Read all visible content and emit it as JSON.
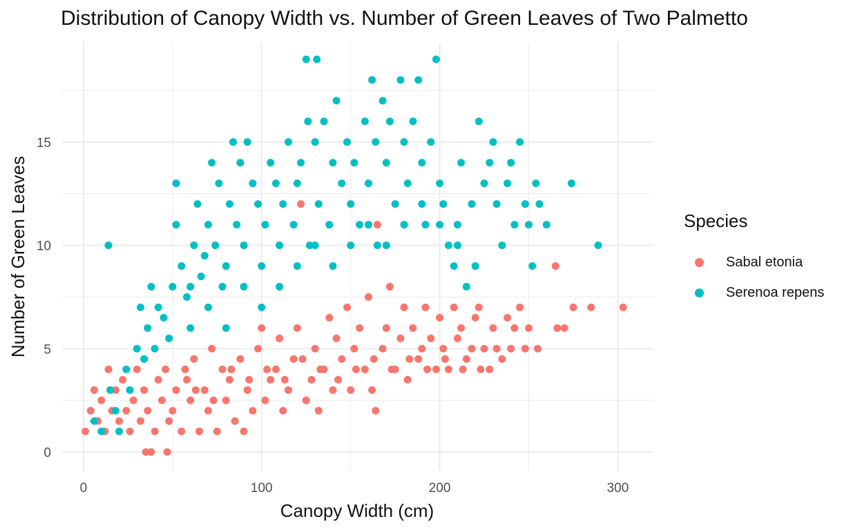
{
  "chart_data": {
    "type": "scatter",
    "title": "Distribution of Canopy Width vs. Number of Green Leaves of Two Palmetto",
    "xlabel": "Canopy Width (cm)",
    "ylabel": "Number of Green Leaves",
    "xlim": [
      -12,
      320
    ],
    "ylim": [
      -0.9,
      19.8
    ],
    "x_ticks": [
      0,
      100,
      200,
      300
    ],
    "y_ticks": [
      0,
      5,
      10,
      15
    ],
    "grid": true,
    "legend": {
      "title": "Species",
      "position": "right"
    },
    "series": [
      {
        "name": "Sabal etonia",
        "color": "#F8766D",
        "points": [
          [
            1,
            1
          ],
          [
            4,
            2
          ],
          [
            6,
            3
          ],
          [
            8,
            1.5
          ],
          [
            10,
            2.5
          ],
          [
            12,
            1
          ],
          [
            14,
            4
          ],
          [
            16,
            2
          ],
          [
            18,
            3
          ],
          [
            20,
            1.5
          ],
          [
            22,
            3.5
          ],
          [
            24,
            2
          ],
          [
            26,
            1
          ],
          [
            28,
            2.5
          ],
          [
            30,
            4
          ],
          [
            32,
            1.5
          ],
          [
            34,
            3
          ],
          [
            35,
            0
          ],
          [
            38,
            0
          ],
          [
            47,
            0
          ],
          [
            36,
            2
          ],
          [
            40,
            1
          ],
          [
            42,
            3.5
          ],
          [
            44,
            2.5
          ],
          [
            46,
            4
          ],
          [
            48,
            1.5
          ],
          [
            50,
            2
          ],
          [
            52,
            3
          ],
          [
            55,
            1
          ],
          [
            58,
            3.5
          ],
          [
            60,
            2.5
          ],
          [
            62,
            4.5
          ],
          [
            65,
            1
          ],
          [
            68,
            3
          ],
          [
            70,
            2
          ],
          [
            72,
            5
          ],
          [
            75,
            1
          ],
          [
            78,
            4
          ],
          [
            80,
            2.5
          ],
          [
            82,
            3.5
          ],
          [
            85,
            1.5
          ],
          [
            88,
            4.5
          ],
          [
            90,
            1
          ],
          [
            92,
            3
          ],
          [
            95,
            2
          ],
          [
            98,
            5
          ],
          [
            100,
            6
          ],
          [
            102,
            2.5
          ],
          [
            105,
            3.5
          ],
          [
            108,
            4
          ],
          [
            110,
            5.5
          ],
          [
            112,
            2
          ],
          [
            115,
            3
          ],
          [
            118,
            4.5
          ],
          [
            120,
            6
          ],
          [
            122,
            12
          ],
          [
            125,
            2.5
          ],
          [
            128,
            3.5
          ],
          [
            130,
            5
          ],
          [
            132,
            2
          ],
          [
            135,
            4
          ],
          [
            138,
            6.5
          ],
          [
            140,
            3
          ],
          [
            142,
            5.5
          ],
          [
            145,
            4.5
          ],
          [
            148,
            7
          ],
          [
            150,
            3
          ],
          [
            152,
            5
          ],
          [
            155,
            6
          ],
          [
            158,
            4
          ],
          [
            160,
            7.5
          ],
          [
            162,
            3
          ],
          [
            164,
            2
          ],
          [
            165,
            11
          ],
          [
            168,
            5
          ],
          [
            170,
            6
          ],
          [
            172,
            8
          ],
          [
            175,
            4
          ],
          [
            178,
            5.5
          ],
          [
            180,
            7
          ],
          [
            182,
            3.5
          ],
          [
            185,
            6
          ],
          [
            188,
            4.5
          ],
          [
            190,
            5
          ],
          [
            192,
            7
          ],
          [
            195,
            5.5
          ],
          [
            198,
            4
          ],
          [
            200,
            6.5
          ],
          [
            202,
            5
          ],
          [
            205,
            4
          ],
          [
            208,
            7
          ],
          [
            210,
            5.5
          ],
          [
            212,
            6
          ],
          [
            215,
            4.5
          ],
          [
            218,
            5
          ],
          [
            220,
            6.5
          ],
          [
            222,
            7
          ],
          [
            225,
            5
          ],
          [
            228,
            4
          ],
          [
            230,
            6
          ],
          [
            232,
            5
          ],
          [
            235,
            4.5
          ],
          [
            238,
            6.5
          ],
          [
            240,
            5
          ],
          [
            242,
            6
          ],
          [
            245,
            7
          ],
          [
            248,
            5
          ],
          [
            250,
            6
          ],
          [
            255,
            5
          ],
          [
            265,
            9
          ],
          [
            266,
            6
          ],
          [
            270,
            6
          ],
          [
            275,
            7
          ],
          [
            285,
            7
          ],
          [
            303,
            7
          ],
          [
            57,
            4
          ],
          [
            63,
            3
          ],
          [
            73,
            2.5
          ],
          [
            83,
            4
          ],
          [
            93,
            3.5
          ],
          [
            103,
            4
          ],
          [
            113,
            3.5
          ],
          [
            123,
            4.5
          ],
          [
            133,
            4
          ],
          [
            143,
            3.5
          ],
          [
            153,
            4
          ],
          [
            163,
            4.5
          ],
          [
            173,
            4
          ],
          [
            183,
            4.5
          ],
          [
            193,
            4
          ],
          [
            203,
            4.5
          ],
          [
            213,
            4
          ],
          [
            223,
            4
          ]
        ]
      },
      {
        "name": "Serenoa repens",
        "color": "#00BFC4",
        "points": [
          [
            14,
            10
          ],
          [
            6,
            1.5
          ],
          [
            10,
            1
          ],
          [
            15,
            3
          ],
          [
            18,
            2
          ],
          [
            20,
            1
          ],
          [
            24,
            4
          ],
          [
            26,
            3
          ],
          [
            30,
            5
          ],
          [
            32,
            7
          ],
          [
            34,
            4.5
          ],
          [
            36,
            6
          ],
          [
            38,
            8
          ],
          [
            40,
            5
          ],
          [
            42,
            7
          ],
          [
            45,
            6.5
          ],
          [
            48,
            5.5
          ],
          [
            50,
            8
          ],
          [
            52,
            13
          ],
          [
            52,
            11
          ],
          [
            55,
            9
          ],
          [
            58,
            7.5
          ],
          [
            60,
            6
          ],
          [
            62,
            10
          ],
          [
            64,
            12
          ],
          [
            66,
            8.5
          ],
          [
            68,
            9.5
          ],
          [
            70,
            11
          ],
          [
            72,
            14
          ],
          [
            74,
            10
          ],
          [
            76,
            13
          ],
          [
            78,
            8
          ],
          [
            80,
            9
          ],
          [
            82,
            12
          ],
          [
            84,
            15
          ],
          [
            86,
            11
          ],
          [
            88,
            14
          ],
          [
            90,
            10
          ],
          [
            92,
            15
          ],
          [
            95,
            13
          ],
          [
            98,
            12
          ],
          [
            100,
            9
          ],
          [
            102,
            11
          ],
          [
            105,
            14
          ],
          [
            108,
            13
          ],
          [
            110,
            10
          ],
          [
            112,
            12
          ],
          [
            115,
            15
          ],
          [
            118,
            11
          ],
          [
            120,
            13
          ],
          [
            122,
            14
          ],
          [
            125,
            19
          ],
          [
            126,
            16
          ],
          [
            127,
            10
          ],
          [
            130,
            15
          ],
          [
            131,
            19
          ],
          [
            132,
            12
          ],
          [
            135,
            16
          ],
          [
            138,
            11
          ],
          [
            140,
            14
          ],
          [
            142,
            17
          ],
          [
            145,
            13
          ],
          [
            148,
            15
          ],
          [
            150,
            12
          ],
          [
            152,
            14
          ],
          [
            155,
            11
          ],
          [
            158,
            16
          ],
          [
            160,
            13
          ],
          [
            162,
            18
          ],
          [
            164,
            15
          ],
          [
            165,
            10
          ],
          [
            168,
            17
          ],
          [
            170,
            14
          ],
          [
            172,
            16
          ],
          [
            175,
            12
          ],
          [
            178,
            18
          ],
          [
            180,
            15
          ],
          [
            182,
            13
          ],
          [
            185,
            16
          ],
          [
            188,
            18
          ],
          [
            190,
            14
          ],
          [
            192,
            11
          ],
          [
            195,
            15
          ],
          [
            198,
            19
          ],
          [
            200,
            13
          ],
          [
            202,
            12
          ],
          [
            205,
            10
          ],
          [
            208,
            9
          ],
          [
            210,
            11
          ],
          [
            212,
            14
          ],
          [
            215,
            8
          ],
          [
            218,
            12
          ],
          [
            220,
            9
          ],
          [
            222,
            16
          ],
          [
            225,
            13
          ],
          [
            228,
            14
          ],
          [
            230,
            15
          ],
          [
            232,
            12
          ],
          [
            235,
            10
          ],
          [
            238,
            13
          ],
          [
            240,
            14
          ],
          [
            242,
            11
          ],
          [
            245,
            15
          ],
          [
            248,
            12
          ],
          [
            250,
            11
          ],
          [
            252,
            9
          ],
          [
            254,
            13
          ],
          [
            256,
            12
          ],
          [
            260,
            11
          ],
          [
            274,
            13
          ],
          [
            289,
            10
          ],
          [
            60,
            8
          ],
          [
            70,
            7
          ],
          [
            80,
            6
          ],
          [
            90,
            8
          ],
          [
            100,
            7
          ],
          [
            110,
            8
          ],
          [
            120,
            9
          ],
          [
            130,
            10
          ],
          [
            140,
            9
          ],
          [
            150,
            10
          ],
          [
            160,
            11
          ],
          [
            170,
            10
          ],
          [
            180,
            11
          ],
          [
            190,
            12
          ],
          [
            200,
            11
          ],
          [
            210,
            10
          ]
        ]
      }
    ]
  }
}
